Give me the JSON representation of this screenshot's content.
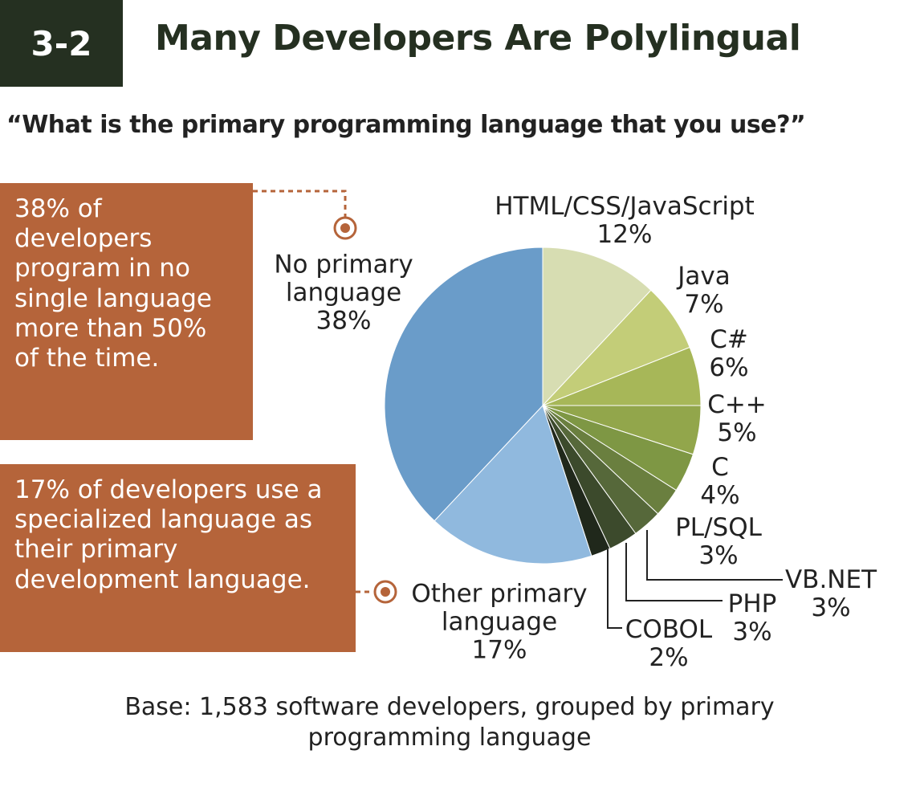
{
  "header": {
    "badge": "3-2",
    "title": "Many Developers Are Polylingual"
  },
  "subtitle": "“What is the primary programming language that you use?”",
  "callouts": [
    "38% of developers program in no single language more than 50% of the time.",
    "17% of developers use a specialized language as their primary development language."
  ],
  "chart_data": {
    "type": "pie",
    "categories": [
      "HTML/CSS/JavaScript",
      "Java",
      "C#",
      "C++",
      "C",
      "PL/SQL",
      "VB.NET",
      "PHP",
      "COBOL",
      "Other primary language",
      "No primary language"
    ],
    "values": [
      12,
      7,
      6,
      5,
      4,
      3,
      3,
      3,
      2,
      17,
      38
    ],
    "value_labels": [
      "12%",
      "7%",
      "6%",
      "5%",
      "4%",
      "3%",
      "3%",
      "3%",
      "2%",
      "17%",
      "38%"
    ],
    "colors": [
      "#d7ddb2",
      "#c3cd78",
      "#a7b758",
      "#92a64b",
      "#7e9744",
      "#6a7f3f",
      "#56683a",
      "#3c4a2c",
      "#20281b",
      "#90b9de",
      "#6a9cc9"
    ]
  },
  "footnote": "Base: 1,583 software developers, grouped by primary programming language"
}
